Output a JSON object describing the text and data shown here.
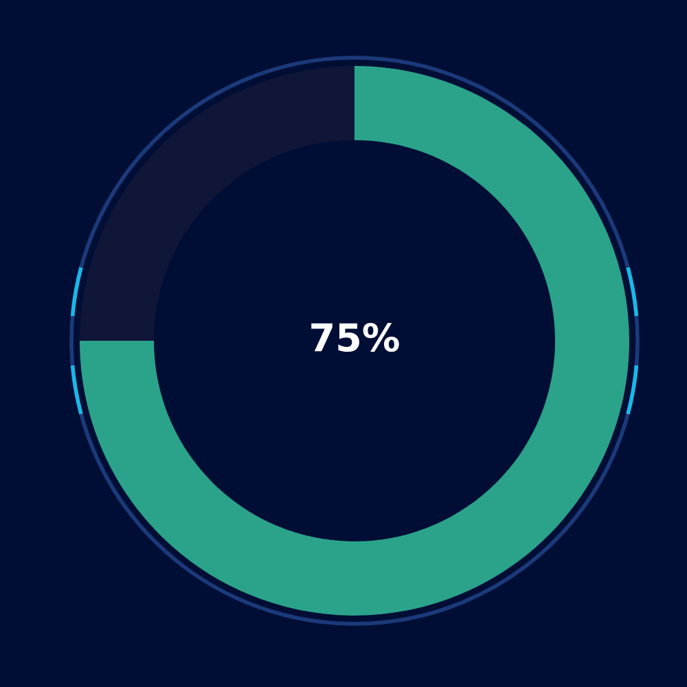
{
  "chart_data": {
    "type": "donut",
    "categories": [
      null,
      null
    ],
    "values": [
      75,
      25
    ],
    "colors": [
      "#2aa38a",
      "#0f1638"
    ],
    "annotations": [
      "75%"
    ]
  }
}
